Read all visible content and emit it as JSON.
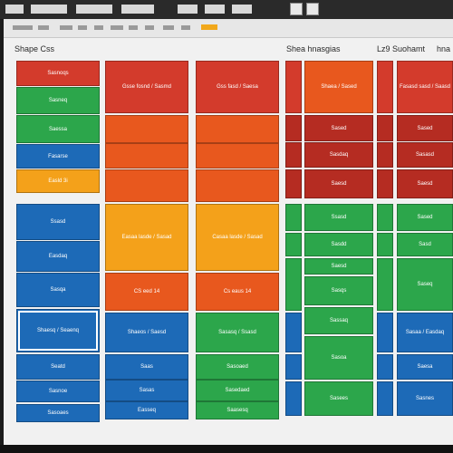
{
  "colors": {
    "red": "#d33b2c",
    "orange": "#e8581e",
    "amber": "#f4a11a",
    "green": "#2ca64b",
    "blue": "#1d6ab7",
    "darkred": "#b52c22"
  },
  "titles": {
    "left": "Shape Css",
    "right_a": "Shea hnasgias",
    "right_b": "Lz9 Suohamt",
    "right_c": "hna"
  },
  "toolbar_icons": [
    "toolbar-icon-1",
    "toolbar-icon-2",
    "toolbar-icon-3",
    "toolbar-icon-4",
    "toolbar-icon-5",
    "toolbar-icon-6",
    "toolbar-icon-7",
    "toolbar-icon-8",
    "toolbar-icon-9",
    "toolbar-icon-10",
    "toolbar-icon-11"
  ],
  "col1": [
    {
      "label": "Sasnoqs",
      "color": "red"
    },
    {
      "label": "Sasneq",
      "color": "green"
    },
    {
      "label": "Saessa",
      "color": "green"
    },
    {
      "label": "Fasarse",
      "color": "blue"
    },
    {
      "label": "Easld 3i",
      "color": "amber"
    },
    {
      "label": "Ssasd",
      "color": "blue"
    },
    {
      "label": "Easdaq",
      "color": "blue"
    },
    {
      "label": "Sasqa",
      "color": "blue"
    },
    {
      "label": "Shaesq / Seaenq",
      "color": "blue"
    },
    {
      "label": "Seatd",
      "color": "blue"
    },
    {
      "label": "Sasnoe",
      "color": "blue"
    },
    {
      "label": "Sasoaes",
      "color": "blue"
    }
  ],
  "col2": [
    {
      "label": "Gsse fosnd / Sasmd",
      "color": "red"
    },
    {
      "label": "",
      "color": "orange"
    },
    {
      "label": "",
      "color": "orange"
    },
    {
      "label": "",
      "color": "orange"
    },
    {
      "label": "Easaa lasde / Sasad",
      "color": "amber"
    },
    {
      "label": "CS eed 14",
      "color": "orange"
    },
    {
      "label": "Shaeos / Saesd",
      "color": "blue"
    },
    {
      "label": "Saas",
      "color": "blue"
    },
    {
      "label": "Sasas",
      "color": "blue"
    },
    {
      "label": "Easseq",
      "color": "blue"
    }
  ],
  "col3": [
    {
      "label": "Gss fasd / Saesa",
      "color": "red"
    },
    {
      "label": "",
      "color": "orange"
    },
    {
      "label": "",
      "color": "orange"
    },
    {
      "label": "",
      "color": "orange"
    },
    {
      "label": "Casaa lasde / Sasad",
      "color": "amber"
    },
    {
      "label": "Cs eaus 14",
      "color": "orange"
    },
    {
      "label": "Sasasq / Ssasd",
      "color": "green"
    },
    {
      "label": "Sasoaed",
      "color": "green"
    },
    {
      "label": "Sasedaed",
      "color": "green"
    },
    {
      "label": "Saasesq",
      "color": "green"
    }
  ],
  "col5": [
    {
      "label": "Shaea / Sased",
      "color": "orange"
    },
    {
      "label": "Sased",
      "color": "darkred"
    },
    {
      "label": "Sasdaq",
      "color": "darkred"
    },
    {
      "label": "Saesd",
      "color": "darkred"
    },
    {
      "label": "Ssasd",
      "color": "green"
    },
    {
      "label": "Sasdd",
      "color": "green"
    },
    {
      "label": "Saesd",
      "color": "green"
    },
    {
      "label": "Sasqs",
      "color": "green"
    },
    {
      "label": "Sassaq",
      "color": "green"
    },
    {
      "label": "Sasoa",
      "color": "green"
    },
    {
      "label": "Sasees",
      "color": "green"
    }
  ],
  "col7": [
    {
      "label": "Fasasd sasd / Saasd",
      "color": "red"
    },
    {
      "label": "Sased",
      "color": "darkred"
    },
    {
      "label": "Sasasd",
      "color": "darkred"
    },
    {
      "label": "Saesd",
      "color": "darkred"
    },
    {
      "label": "Sased",
      "color": "green"
    },
    {
      "label": "Sasd",
      "color": "green"
    },
    {
      "label": "Saseq",
      "color": "green"
    },
    {
      "label": "Sasaa / Easdaq",
      "color": "blue"
    },
    {
      "label": "Saesa",
      "color": "blue"
    },
    {
      "label": "Sasnes",
      "color": "blue"
    }
  ],
  "col4_colors": [
    "red",
    "darkred",
    "darkred",
    "darkred",
    "green",
    "green",
    "green",
    "blue",
    "blue",
    "blue"
  ],
  "col6_colors": [
    "red",
    "darkred",
    "darkred",
    "darkred",
    "green",
    "green",
    "green",
    "blue",
    "blue",
    "blue"
  ]
}
